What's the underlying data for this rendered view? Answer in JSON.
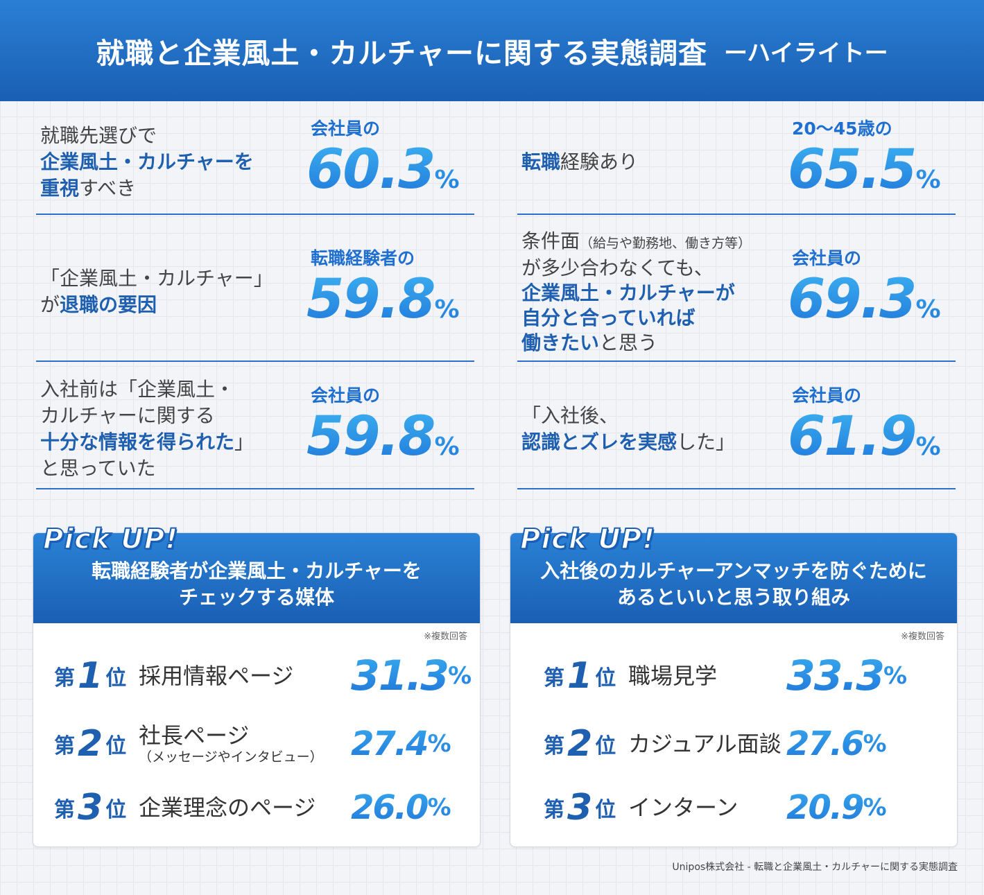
{
  "header": {
    "title": "就職と企業風土・カルチャーに関する実態調査",
    "subtitle": "ーハイライトー"
  },
  "stats": {
    "s1": {
      "l1": "就職先選びで",
      "l2": "企業風土・カルチャーを",
      "l3a": "重視",
      "l3b": "すべき",
      "cap": "会社員の",
      "num": "60.3",
      "pct": "%"
    },
    "s2": {
      "l1a": "転職",
      "l1b": "経験あり",
      "cap": "20〜45歳の",
      "num": "65.5",
      "pct": "%"
    },
    "s3": {
      "l1": "「企業風土・カルチャー」",
      "l2a": "が",
      "l2b": "退職の要因",
      "cap": "転職経験者の",
      "num": "59.8",
      "pct": "%"
    },
    "s4": {
      "l1a": "条件面",
      "l1b": "（給与や勤務地、働き方等）",
      "l2": "が多少合わなくても、",
      "l3": "企業風土・カルチャーが",
      "l4": "自分と合っていれば",
      "l5a": "働きたい",
      "l5b": "と思う",
      "cap": "会社員の",
      "num": "69.3",
      "pct": "%"
    },
    "s5": {
      "l1": "入社前は「企業風土・",
      "l2": "カルチャーに関する",
      "l3a": "十分な情報を得られた",
      "l3b": "」",
      "l4": "と思っていた",
      "cap": "会社員の",
      "num": "59.8",
      "pct": "%"
    },
    "s6": {
      "l1": "「入社後、",
      "l2a": "認識とズレを実感",
      "l2b": "した」",
      "cap": "会社員の",
      "num": "61.9",
      "pct": "%"
    }
  },
  "pick_left": {
    "badge": "Pick UP!",
    "title1": "転職経験者が企業風土・カルチャーを",
    "title2": "チェックする媒体",
    "note": "※複数回答",
    "ranks": [
      {
        "dai": "第",
        "n": "1",
        "i": "位",
        "item": "採用情報ページ",
        "sub": "",
        "val": "31.3",
        "p": "%"
      },
      {
        "dai": "第",
        "n": "2",
        "i": "位",
        "item": "社長ページ",
        "sub": "（メッセージやインタビュー）",
        "val": "27.4",
        "p": "%"
      },
      {
        "dai": "第",
        "n": "3",
        "i": "位",
        "item": "企業理念のページ",
        "sub": "",
        "val": "26.0",
        "p": "%"
      }
    ]
  },
  "pick_right": {
    "badge": "Pick UP!",
    "title1": "入社後のカルチャーアンマッチを防ぐために",
    "title2": "あるといいと思う取り組み",
    "note": "※複数回答",
    "ranks": [
      {
        "dai": "第",
        "n": "1",
        "i": "位",
        "item": "職場見学",
        "sub": "",
        "val": "33.3",
        "p": "%"
      },
      {
        "dai": "第",
        "n": "2",
        "i": "位",
        "item": "カジュアル面談",
        "sub": "",
        "val": "27.6",
        "p": "%"
      },
      {
        "dai": "第",
        "n": "3",
        "i": "位",
        "item": "インターン",
        "sub": "",
        "val": "20.9",
        "p": "%"
      }
    ]
  },
  "footer": "Unipos株式会社 - 転職と企業風土・カルチャーに関する実態調査"
}
